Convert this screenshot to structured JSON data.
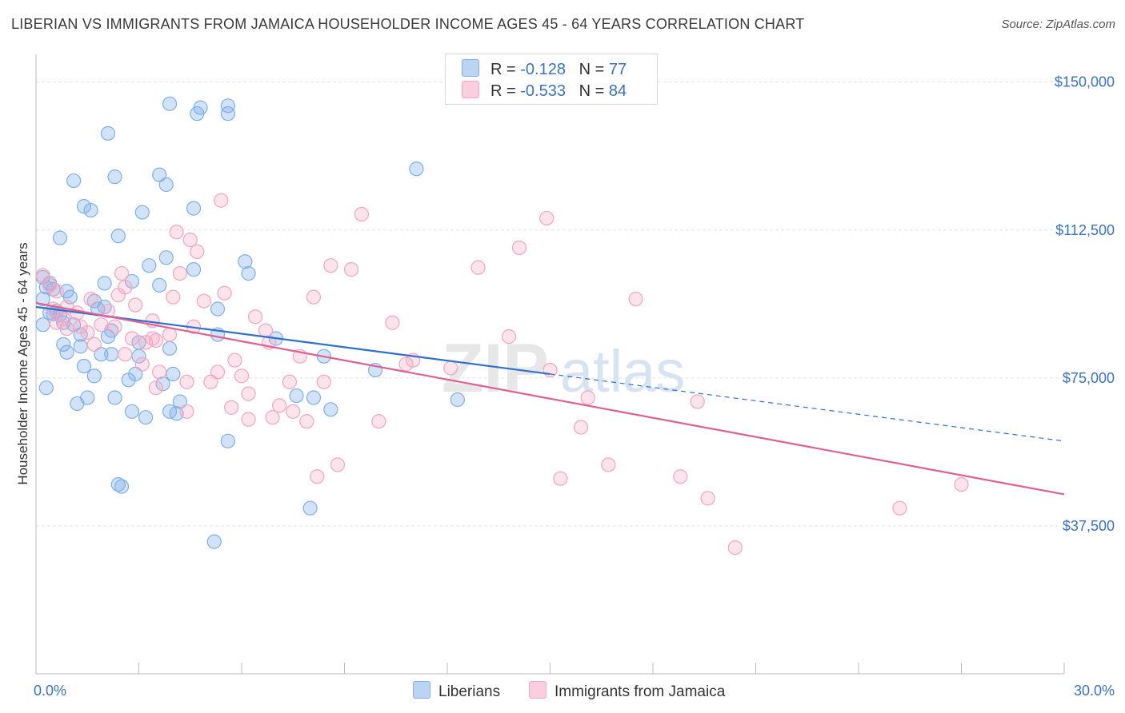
{
  "title": "LIBERIAN VS IMMIGRANTS FROM JAMAICA HOUSEHOLDER INCOME AGES 45 - 64 YEARS CORRELATION CHART",
  "source": "Source: ZipAtlas.com",
  "legend": {
    "rows": [
      {
        "r_label": "R =",
        "r_value": "-0.128",
        "n_label": "N =",
        "n_value": "77"
      },
      {
        "r_label": "R =",
        "r_value": "-0.533",
        "n_label": "N =",
        "n_value": "84"
      }
    ]
  },
  "watermark": {
    "part1": "ZIP",
    "part2": "atlas"
  },
  "chart_data": {
    "type": "scatter",
    "title": "LIBERIAN VS IMMIGRANTS FROM JAMAICA HOUSEHOLDER INCOME AGES 45 - 64 YEARS CORRELATION CHART",
    "xlabel": "",
    "ylabel": "Householder Income Ages 45 - 64 years",
    "xlim": [
      0,
      30
    ],
    "ylim": [
      0,
      155000
    ],
    "x_tick_labels": [
      "0.0%",
      "30.0%"
    ],
    "y_ticks": [
      37500,
      75000,
      112500,
      150000
    ],
    "y_tick_labels": [
      "$37,500",
      "$75,000",
      "$112,500",
      "$150,000"
    ],
    "grid": true,
    "legend_position": "top-center",
    "series": [
      {
        "name": "Liberians",
        "color": "#7fb0e8",
        "line_color": "#2f6fcf",
        "trend": {
          "x_start": 0,
          "y_start": 93000,
          "x_end": 30,
          "y_end": 59000,
          "solid_until_x": 15
        },
        "points": [
          [
            0.2,
            100500
          ],
          [
            0.4,
            99000
          ],
          [
            0.5,
            97500
          ],
          [
            0.3,
            98000
          ],
          [
            0.2,
            95000
          ],
          [
            0.6,
            92000
          ],
          [
            0.4,
            91500
          ],
          [
            0.7,
            91000
          ],
          [
            0.2,
            88500
          ],
          [
            0.9,
            97000
          ],
          [
            1.0,
            95500
          ],
          [
            0.5,
            91200
          ],
          [
            0.8,
            89000
          ],
          [
            1.1,
            88500
          ],
          [
            1.3,
            86000
          ],
          [
            0.9,
            81500
          ],
          [
            0.8,
            83500
          ],
          [
            1.3,
            83000
          ],
          [
            1.4,
            78000
          ],
          [
            1.7,
            75500
          ],
          [
            1.9,
            81000
          ],
          [
            0.3,
            72500
          ],
          [
            1.2,
            68500
          ],
          [
            1.5,
            70000
          ],
          [
            2.2,
            81000
          ],
          [
            2.1,
            85500
          ],
          [
            2.2,
            87000
          ],
          [
            1.8,
            92500
          ],
          [
            2.0,
            93000
          ],
          [
            1.7,
            94500
          ],
          [
            2.0,
            99000
          ],
          [
            2.8,
            99500
          ],
          [
            2.3,
            70000
          ],
          [
            2.7,
            74500
          ],
          [
            2.9,
            76000
          ],
          [
            3.0,
            80500
          ],
          [
            3.0,
            84000
          ],
          [
            2.8,
            66500
          ],
          [
            3.2,
            65000
          ],
          [
            2.4,
            48000
          ],
          [
            2.5,
            47500
          ],
          [
            3.3,
            103500
          ],
          [
            3.8,
            105500
          ],
          [
            3.6,
            98500
          ],
          [
            3.9,
            82500
          ],
          [
            3.9,
            66500
          ],
          [
            4.1,
            66000
          ],
          [
            4.2,
            69000
          ],
          [
            4.0,
            76000
          ],
          [
            3.7,
            73500
          ],
          [
            4.6,
            102500
          ],
          [
            0.7,
            110500
          ],
          [
            1.1,
            125000
          ],
          [
            1.4,
            118500
          ],
          [
            1.6,
            117500
          ],
          [
            2.1,
            137000
          ],
          [
            2.3,
            126000
          ],
          [
            2.4,
            111000
          ],
          [
            3.1,
            117000
          ],
          [
            3.6,
            126500
          ],
          [
            3.8,
            124000
          ],
          [
            3.9,
            144500
          ],
          [
            4.7,
            142000
          ],
          [
            4.8,
            143500
          ],
          [
            4.6,
            118000
          ],
          [
            5.6,
            142000
          ],
          [
            5.6,
            144000
          ],
          [
            6.1,
            104500
          ],
          [
            5.3,
            92500
          ],
          [
            5.3,
            86000
          ],
          [
            5.6,
            59000
          ],
          [
            6.2,
            101500
          ],
          [
            7.0,
            85000
          ],
          [
            8.1,
            70000
          ],
          [
            7.6,
            70500
          ],
          [
            8.0,
            42000
          ],
          [
            8.4,
            80500
          ],
          [
            8.6,
            67000
          ],
          [
            9.9,
            77000
          ],
          [
            11.1,
            128000
          ],
          [
            12.3,
            69500
          ],
          [
            5.2,
            33500
          ]
        ]
      },
      {
        "name": "Immigrants from Jamaica",
        "color": "#f4a5bf",
        "line_color": "#e0608f",
        "trend": {
          "x_start": 0,
          "y_start": 94000,
          "x_end": 30,
          "y_end": 45500
        },
        "points": [
          [
            0.2,
            101000
          ],
          [
            0.4,
            98500
          ],
          [
            0.6,
            97000
          ],
          [
            0.5,
            92500
          ],
          [
            0.8,
            90000
          ],
          [
            0.6,
            89000
          ],
          [
            0.9,
            93000
          ],
          [
            1.2,
            91500
          ],
          [
            1.3,
            88000
          ],
          [
            1.5,
            86500
          ],
          [
            1.6,
            95000
          ],
          [
            1.9,
            88500
          ],
          [
            2.1,
            92000
          ],
          [
            2.4,
            96000
          ],
          [
            2.5,
            101500
          ],
          [
            2.6,
            98000
          ],
          [
            2.8,
            85000
          ],
          [
            2.9,
            93500
          ],
          [
            3.1,
            78500
          ],
          [
            3.2,
            84000
          ],
          [
            3.5,
            84500
          ],
          [
            3.4,
            89500
          ],
          [
            3.6,
            76500
          ],
          [
            3.9,
            86000
          ],
          [
            4.0,
            95500
          ],
          [
            4.2,
            101500
          ],
          [
            4.4,
            74000
          ],
          [
            4.5,
            110000
          ],
          [
            4.6,
            88000
          ],
          [
            4.7,
            107000
          ],
          [
            4.9,
            94500
          ],
          [
            5.1,
            74000
          ],
          [
            5.3,
            76500
          ],
          [
            5.5,
            96500
          ],
          [
            5.7,
            67500
          ],
          [
            5.8,
            79500
          ],
          [
            6.0,
            75500
          ],
          [
            6.2,
            71000
          ],
          [
            6.4,
            90500
          ],
          [
            6.7,
            87000
          ],
          [
            6.9,
            65000
          ],
          [
            7.1,
            68000
          ],
          [
            7.4,
            74000
          ],
          [
            7.7,
            80500
          ],
          [
            7.9,
            64000
          ],
          [
            8.1,
            95500
          ],
          [
            8.4,
            74000
          ],
          [
            8.6,
            103500
          ],
          [
            8.8,
            53000
          ],
          [
            9.2,
            102500
          ],
          [
            9.5,
            116500
          ],
          [
            10.0,
            64000
          ],
          [
            10.4,
            89000
          ],
          [
            10.8,
            78500
          ],
          [
            11.0,
            79500
          ],
          [
            12.1,
            77500
          ],
          [
            12.9,
            103000
          ],
          [
            13.8,
            85500
          ],
          [
            14.1,
            108000
          ],
          [
            14.9,
            115500
          ],
          [
            15.0,
            77000
          ],
          [
            15.3,
            49500
          ],
          [
            15.9,
            62500
          ],
          [
            16.1,
            70000
          ],
          [
            16.7,
            53000
          ],
          [
            17.5,
            95000
          ],
          [
            18.8,
            50000
          ],
          [
            19.3,
            69000
          ],
          [
            19.6,
            44500
          ],
          [
            20.4,
            32000
          ],
          [
            25.2,
            42000
          ],
          [
            27.0,
            48000
          ],
          [
            4.1,
            112000
          ],
          [
            5.4,
            120000
          ],
          [
            6.8,
            84000
          ],
          [
            7.5,
            66500
          ],
          [
            8.2,
            50000
          ],
          [
            3.5,
            72500
          ],
          [
            2.6,
            81000
          ],
          [
            1.7,
            83500
          ],
          [
            0.9,
            87500
          ],
          [
            4.4,
            66500
          ],
          [
            6.2,
            64500
          ],
          [
            3.4,
            85000
          ],
          [
            2.3,
            88000
          ]
        ]
      }
    ]
  },
  "bottom_legend": {
    "series1": "Liberians",
    "series2": "Immigrants from Jamaica"
  }
}
